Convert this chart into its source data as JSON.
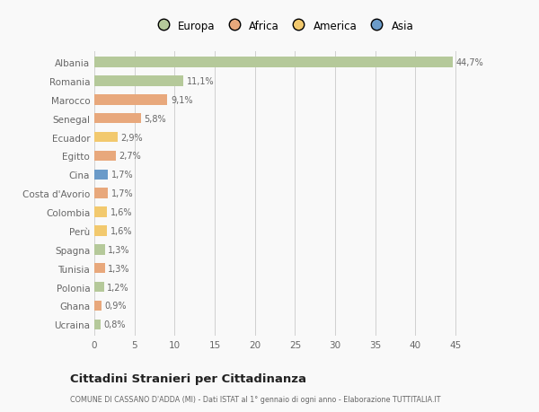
{
  "countries": [
    "Ucraina",
    "Ghana",
    "Polonia",
    "Tunisia",
    "Spagna",
    "Perù",
    "Colombia",
    "Costa d'Avorio",
    "Cina",
    "Egitto",
    "Ecuador",
    "Senegal",
    "Marocco",
    "Romania",
    "Albania"
  ],
  "values": [
    0.8,
    0.9,
    1.2,
    1.3,
    1.3,
    1.6,
    1.6,
    1.7,
    1.7,
    2.7,
    2.9,
    5.8,
    9.1,
    11.1,
    44.7
  ],
  "labels": [
    "0,8%",
    "0,9%",
    "1,2%",
    "1,3%",
    "1,3%",
    "1,6%",
    "1,6%",
    "1,7%",
    "1,7%",
    "2,7%",
    "2,9%",
    "5,8%",
    "9,1%",
    "11,1%",
    "44,7%"
  ],
  "colors": [
    "#b5c99a",
    "#e8a87c",
    "#b5c99a",
    "#e8a87c",
    "#b5c99a",
    "#f2c96e",
    "#f2c96e",
    "#e8a87c",
    "#6b9bc9",
    "#e8a87c",
    "#f2c96e",
    "#e8a87c",
    "#e8a87c",
    "#b5c99a",
    "#b5c99a"
  ],
  "continent_colors": {
    "Europa": "#b5c99a",
    "Africa": "#e8a87c",
    "America": "#f2c96e",
    "Asia": "#6b9bc9"
  },
  "title": "Cittadini Stranieri per Cittadinanza",
  "subtitle": "COMUNE DI CASSANO D'ADDA (MI) - Dati ISTAT al 1° gennaio di ogni anno - Elaborazione TUTTITALIA.IT",
  "xlim": [
    0,
    47
  ],
  "background_color": "#f9f9f9",
  "grid_color": "#d0d0d0",
  "bar_height": 0.55
}
